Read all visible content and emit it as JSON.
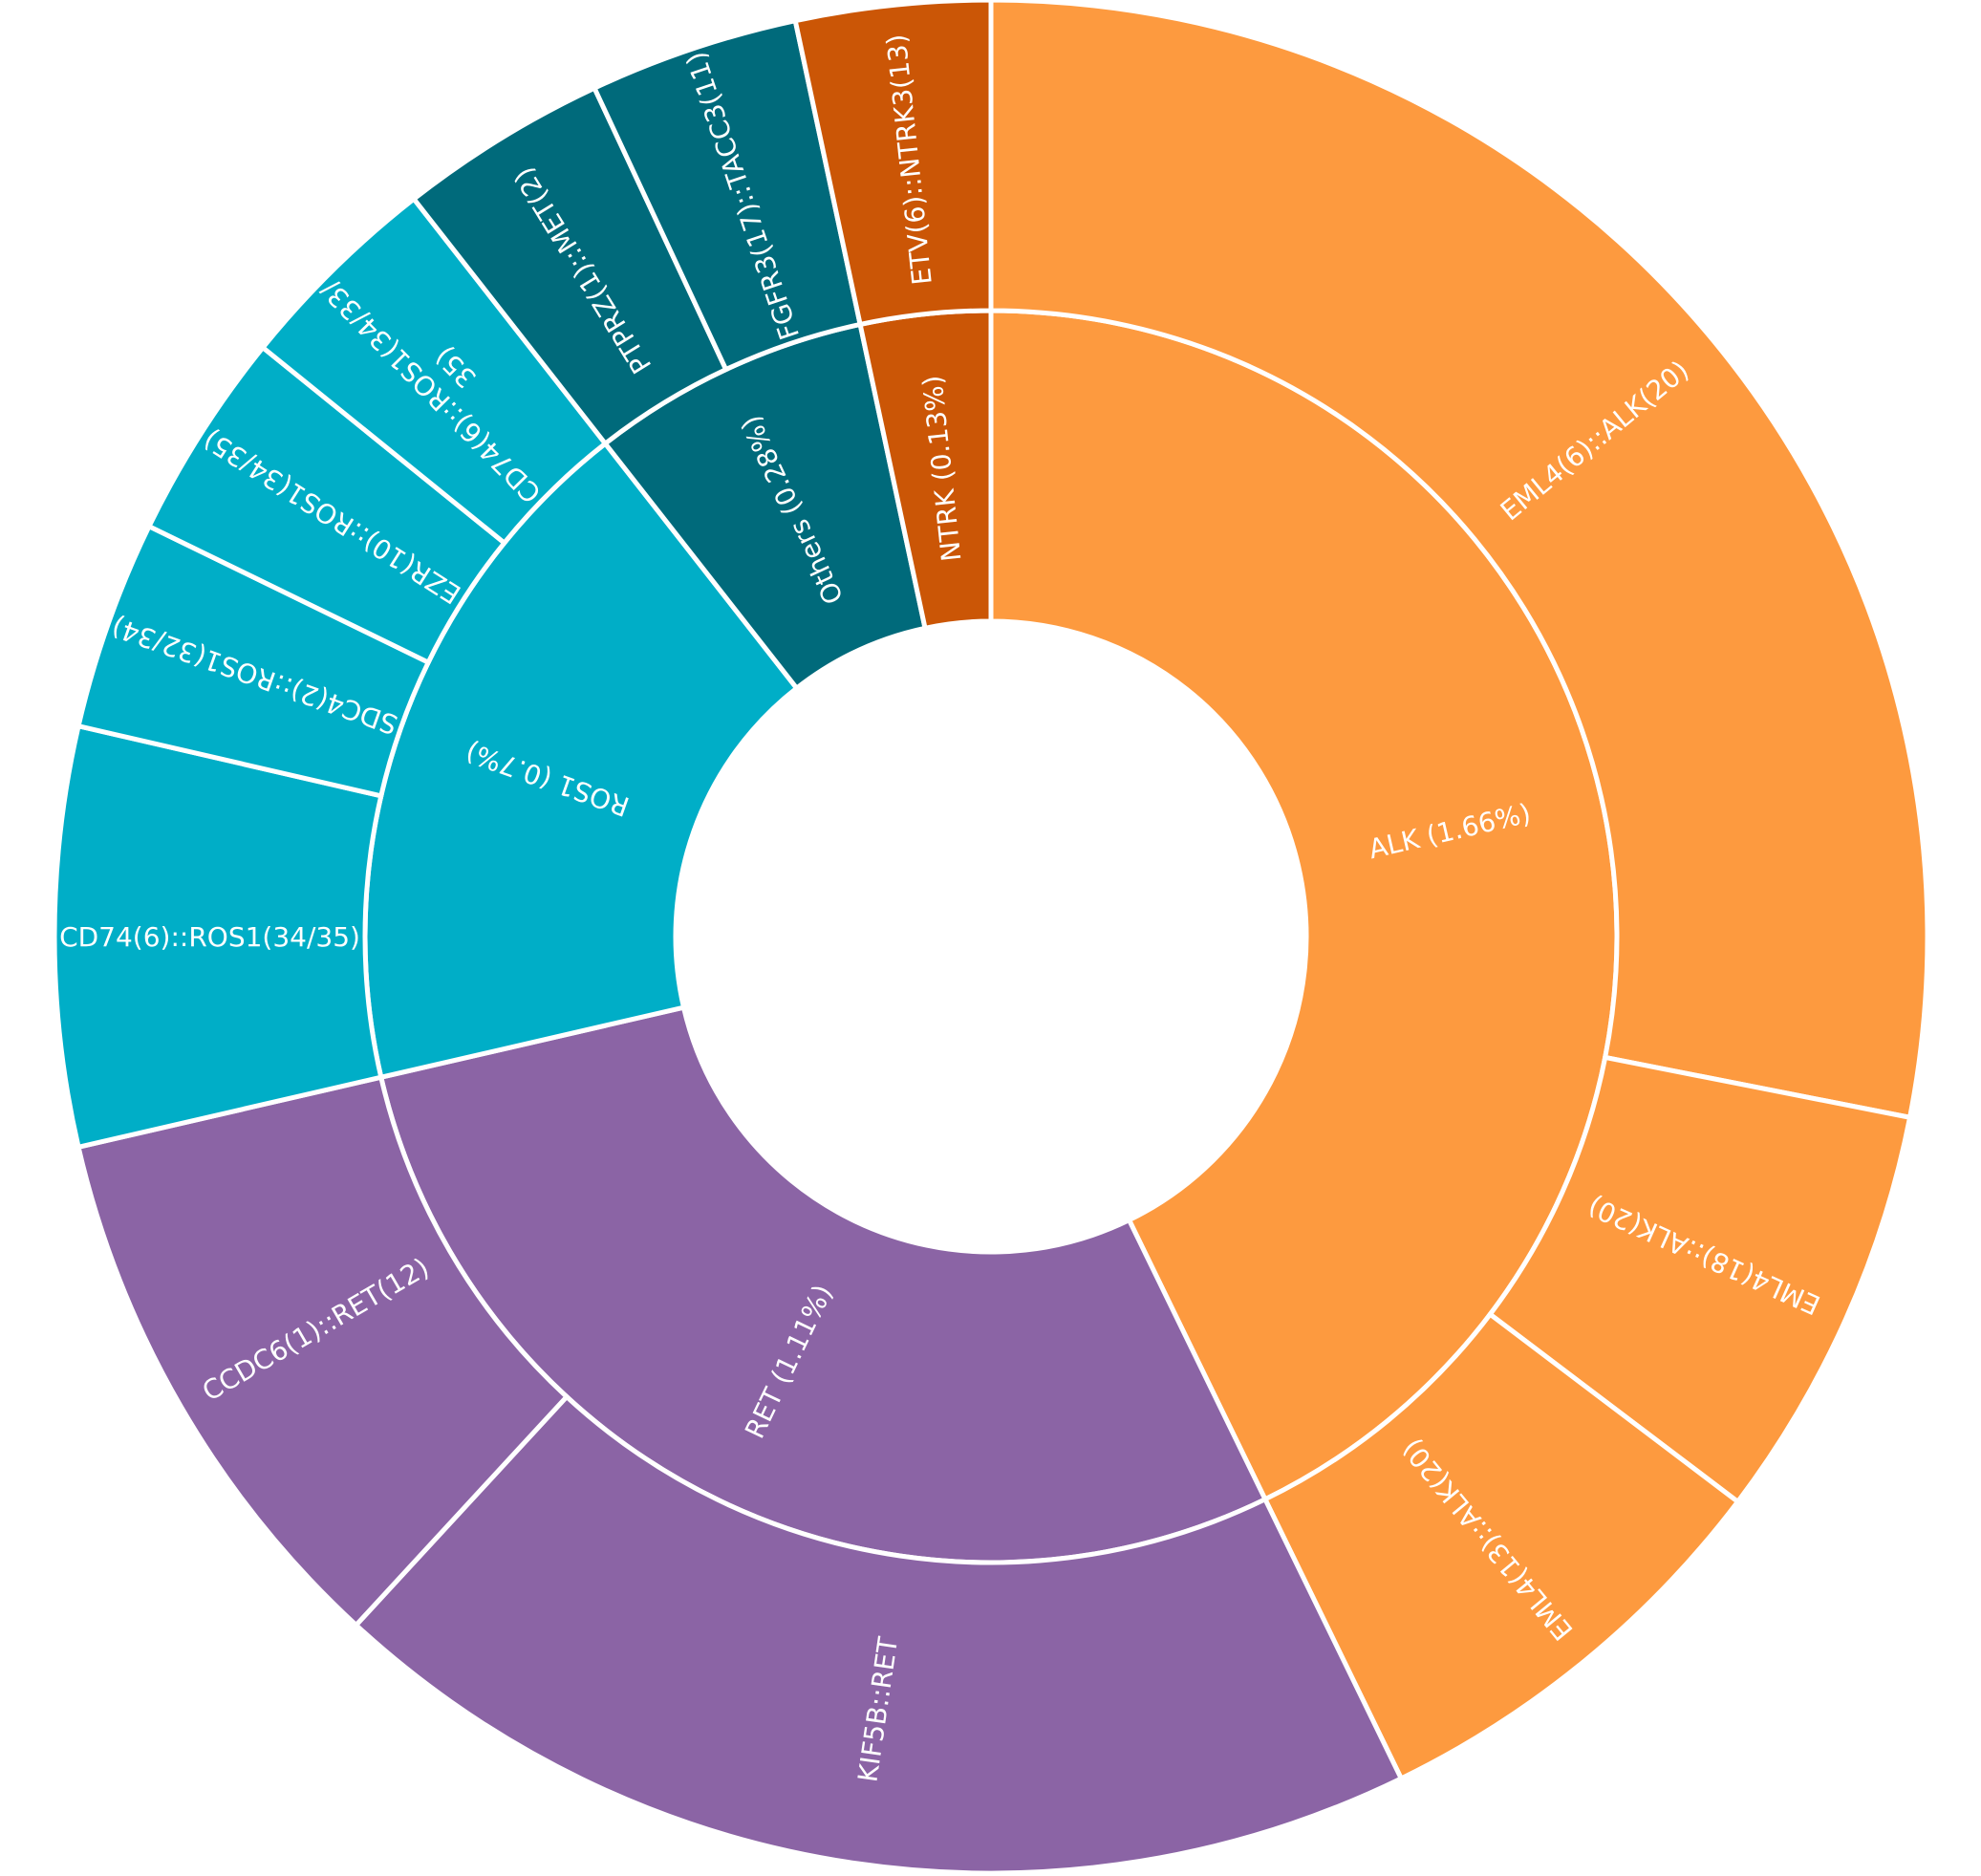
{
  "chart_data": {
    "type": "sunburst",
    "unit": "%",
    "colors": {
      "ALK": "#fd9a3f",
      "RET": "#8b64a5",
      "ROS1": "#00aec7",
      "Others": "#006a7b",
      "NTRK": "#cb5606"
    },
    "inner": [
      {
        "key": "ALK",
        "label": "ALK (1.66%)",
        "value": 1.66
      },
      {
        "key": "RET",
        "label": "RET (1.11%)",
        "value": 1.11
      },
      {
        "key": "ROS1",
        "label": "ROS1 (0.7%)",
        "value": 0.7
      },
      {
        "key": "Others",
        "label": "Others (0.28%)",
        "value": 0.28
      },
      {
        "key": "NTRK",
        "label": "NTRK (0.13%)",
        "value": 0.13
      }
    ],
    "outer": [
      {
        "parent": "ALK",
        "label": "EML4(6)::ALK(20)",
        "value": 1.09
      },
      {
        "parent": "ALK",
        "label": "EML4(18)::ALK(20)",
        "value": 0.28
      },
      {
        "parent": "ALK",
        "label": "EML4(13)::ALK(20)",
        "value": 0.29
      },
      {
        "parent": "RET",
        "label": "KIF5B::RET",
        "value": 0.74
      },
      {
        "parent": "RET",
        "label": "CCDC6(1)::RET(12)",
        "value": 0.37
      },
      {
        "parent": "ROS1",
        "label": "CD74(6)::ROS1(34/35)",
        "value": 0.28
      },
      {
        "parent": "ROS1",
        "label": "SDC4(2)::ROS1(32/34)",
        "value": 0.14
      },
      {
        "parent": "ROS1",
        "label": "EZR(10)::ROS1(34/35)",
        "value": 0.14
      },
      {
        "parent": "ROS1",
        "label": "CD74(6)::ROS1(34/33/35)",
        "lines": [
          "CD74(6)::ROS1(34/33/",
          "35)"
        ],
        "value": 0.14
      },
      {
        "parent": "Others",
        "label": "PTPRZ(1)::MET(2)",
        "value": 0.14
      },
      {
        "parent": "Others",
        "label": "FGFR3(17)::TACC3(11)",
        "value": 0.14
      },
      {
        "parent": "NTRK",
        "label": "ETV(6)::NTRK3(13)",
        "value": 0.13
      }
    ]
  }
}
